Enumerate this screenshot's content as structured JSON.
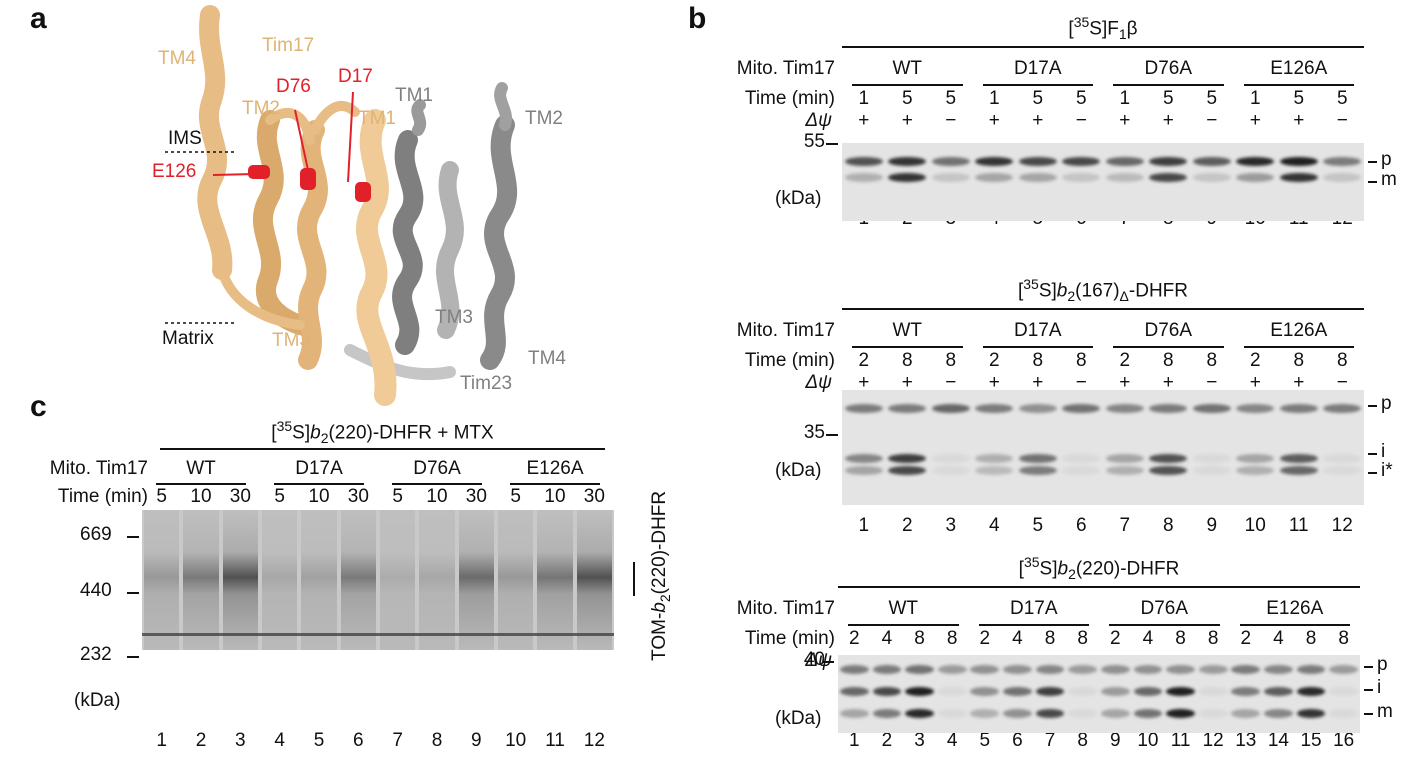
{
  "panel_a": {
    "label": "a",
    "helix_labels": [
      "TM4",
      "Tim17",
      "TM2",
      "TM1",
      "TM3",
      "TM1",
      "TM2",
      "TM3",
      "TM4",
      "Tim23"
    ],
    "residues": [
      "D76",
      "D17",
      "E126"
    ],
    "ims": "IMS",
    "matrix": "Matrix",
    "colors": {
      "tim17": "#e9c08a",
      "tim23": "#8e8e8e",
      "mutant": "#e2202a"
    }
  },
  "panel_b": {
    "label": "b",
    "row_labels": {
      "mito": "Mito. Tim17",
      "time": "Time (min)",
      "dpsi": "Δψ",
      "kda": "(kDa)"
    },
    "groups": [
      "WT",
      "D17A",
      "D76A",
      "E126A"
    ],
    "gels": [
      {
        "title_pre": "[",
        "title_sup": "35",
        "title_post": "S]F",
        "title_sub": "1",
        "title_tail": "β",
        "times": [
          "1",
          "5",
          "5",
          "1",
          "5",
          "5",
          "1",
          "5",
          "5",
          "1",
          "5",
          "5"
        ],
        "dpsi": [
          "+",
          "+",
          "−",
          "+",
          "+",
          "−",
          "+",
          "+",
          "−",
          "+",
          "+",
          "−"
        ],
        "marker": "55",
        "bands": [
          "p",
          "m"
        ],
        "lanes": [
          "1",
          "2",
          "3",
          "4",
          "5",
          "6",
          "7",
          "8",
          "9",
          "10",
          "11",
          "12"
        ]
      },
      {
        "title_pre": "[",
        "title_sup": "35",
        "title_post": "S]",
        "title_b": "b",
        "title_sub2": "2",
        "title_mid": "(167)",
        "title_sub": "Δ",
        "title_tail": "-DHFR",
        "times": [
          "2",
          "8",
          "8",
          "2",
          "8",
          "8",
          "2",
          "8",
          "8",
          "2",
          "8",
          "8"
        ],
        "dpsi": [
          "+",
          "+",
          "−",
          "+",
          "+",
          "−",
          "+",
          "+",
          "−",
          "+",
          "+",
          "−"
        ],
        "marker": "35",
        "bands": [
          "p",
          "i",
          "i*"
        ],
        "lanes": [
          "1",
          "2",
          "3",
          "4",
          "5",
          "6",
          "7",
          "8",
          "9",
          "10",
          "11",
          "12"
        ]
      },
      {
        "title_pre": "[",
        "title_sup": "35",
        "title_post": "S]",
        "title_b": "b",
        "title_sub2": "2",
        "title_mid": "(220)-DHFR",
        "times": [
          "2",
          "4",
          "8",
          "8",
          "2",
          "4",
          "8",
          "8",
          "2",
          "4",
          "8",
          "8",
          "2",
          "4",
          "8",
          "8"
        ],
        "dpsi": [
          "+",
          "+",
          "+",
          "−",
          "+",
          "+",
          "+",
          "−",
          "+",
          "+",
          "+",
          "−",
          "+",
          "+",
          "+",
          "−"
        ],
        "marker": "40",
        "bands": [
          "p",
          "i",
          "m"
        ],
        "lanes": [
          "1",
          "2",
          "3",
          "4",
          "5",
          "6",
          "7",
          "8",
          "9",
          "10",
          "11",
          "12",
          "13",
          "14",
          "15",
          "16"
        ]
      }
    ]
  },
  "panel_c": {
    "label": "c",
    "title_pre": "[",
    "title_sup": "35",
    "title_post": "S]",
    "title_b": "b",
    "title_sub2": "2",
    "title_mid": "(220)-DHFR + MTX",
    "row_labels": {
      "mito": "Mito. Tim17",
      "time": "Time (min)",
      "kda": "(kDa)"
    },
    "groups": [
      "WT",
      "D17A",
      "D76A",
      "E126A"
    ],
    "times": [
      "5",
      "10",
      "30",
      "5",
      "10",
      "30",
      "5",
      "10",
      "30",
      "5",
      "10",
      "30"
    ],
    "markers": [
      "669",
      "440",
      "232"
    ],
    "lanes": [
      "1",
      "2",
      "3",
      "4",
      "5",
      "6",
      "7",
      "8",
      "9",
      "10",
      "11",
      "12"
    ],
    "side_pre": "TOM-",
    "side_b": "b",
    "side_sub": "2",
    "side_post": "(220)-DHFR"
  }
}
